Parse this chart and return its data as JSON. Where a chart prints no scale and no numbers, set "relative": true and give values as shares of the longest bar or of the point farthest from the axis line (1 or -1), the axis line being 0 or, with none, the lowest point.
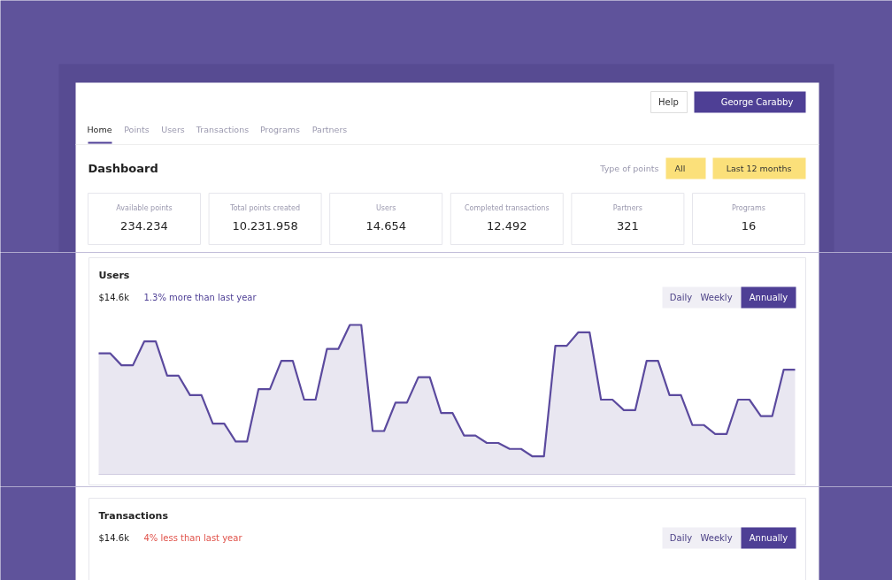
{
  "chart_data": {
    "type": "area",
    "title": "Users",
    "subtitle": "$14.6k",
    "relative": true,
    "annotations": [
      "Help",
      "George Carabby",
      "Home",
      "Points",
      "Users",
      "Transactions",
      "Programs",
      "Partners",
      "Type of points",
      "All",
      "Last 12 months",
      "Dashboard",
      "Available points",
      "234.234",
      "Total points created",
      "10.231.958",
      "Users",
      "14.654",
      "Completed transactions",
      "12.492",
      "Partners",
      "321",
      "Programs",
      "16",
      "1.3% more than last year",
      "Daily",
      "Weekly",
      "Annually",
      "Transactions",
      "$14.6k",
      "4% less than last year",
      "Daily",
      "Weekly",
      "Annually"
    ],
    "categories": [
      null,
      null,
      null,
      null,
      null,
      null,
      null,
      null,
      null,
      null,
      null,
      null,
      null,
      null,
      null,
      null,
      null,
      null,
      null,
      null,
      null,
      null,
      null,
      null,
      null,
      null,
      null,
      null,
      null,
      null,
      null,
      null,
      null,
      null,
      null,
      null,
      null,
      null,
      null,
      null,
      null,
      null,
      null,
      null,
      null,
      null,
      null,
      null,
      null,
      null,
      null,
      null,
      null,
      null,
      null,
      null,
      null,
      null,
      null,
      null,
      null,
      null
    ],
    "series": [
      {
        "color": "#5b4a9e",
        "values": [
          0.81,
          0.81,
          0.73,
          0.73,
          0.89,
          0.89,
          0.66,
          0.66,
          0.53,
          0.53,
          0.34,
          0.34,
          0.22,
          0.22,
          0.57,
          0.57,
          0.76,
          0.76,
          0.5,
          0.5,
          0.84,
          0.84,
          1.0,
          1.0,
          0.29,
          0.29,
          0.48,
          0.48,
          0.65,
          0.65,
          0.41,
          0.41,
          0.26,
          0.26,
          0.21,
          0.21,
          0.17,
          0.17,
          0.12,
          0.12,
          0.86,
          0.86,
          0.95,
          0.95,
          0.5,
          0.5,
          0.43,
          0.43,
          0.76,
          0.76,
          0.53,
          0.53,
          0.33,
          0.33,
          0.27,
          0.27,
          0.5,
          0.5,
          0.39,
          0.39,
          0.7,
          0.7
        ]
      }
    ]
  }
}
